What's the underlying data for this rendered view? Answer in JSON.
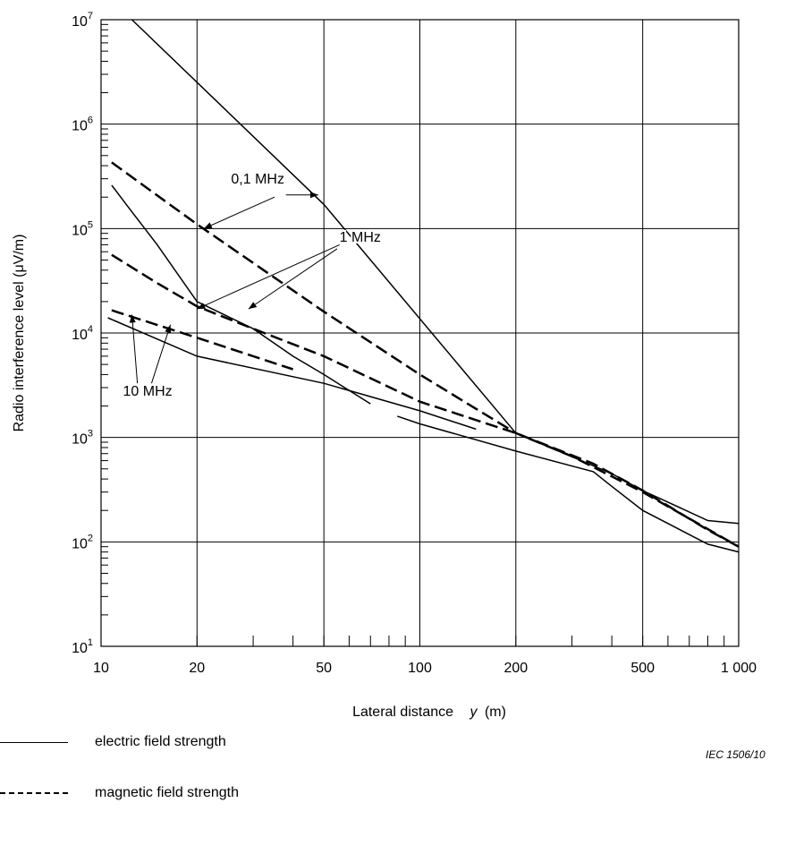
{
  "chart_data": {
    "type": "line",
    "xscale": "log",
    "yscale": "log",
    "xlabel": "Lateral distance",
    "xlabel_var": "y",
    "xlabel_unit": "(m)",
    "ylabel": "Radio interference level   (μV/m)",
    "xlim": [
      10,
      1000
    ],
    "ylim": [
      10,
      10000000
    ],
    "grid": true,
    "x_ticks": [
      {
        "value": 10,
        "label": "10"
      },
      {
        "value": 20,
        "label": "20"
      },
      {
        "value": 50,
        "label": "50"
      },
      {
        "value": 100,
        "label": "100"
      },
      {
        "value": 200,
        "label": "200"
      },
      {
        "value": 500,
        "label": "500"
      },
      {
        "value": 1000,
        "label": "1 000"
      }
    ],
    "y_ticks": [
      {
        "value": 10,
        "base": "10",
        "exp": "1"
      },
      {
        "value": 100,
        "base": "10",
        "exp": "2"
      },
      {
        "value": 1000,
        "base": "10",
        "exp": "3"
      },
      {
        "value": 10000,
        "base": "10",
        "exp": "4"
      },
      {
        "value": 100000,
        "base": "10",
        "exp": "5"
      },
      {
        "value": 1000000,
        "base": "10",
        "exp": "6"
      },
      {
        "value": 10000000,
        "base": "10",
        "exp": "7"
      }
    ],
    "series": [
      {
        "style": "solid",
        "x": [
          12.5,
          50,
          200,
          400,
          500,
          800,
          1000
        ],
        "y": [
          10000000,
          170000,
          1100,
          450,
          310,
          160,
          150
        ]
      },
      {
        "style": "solid",
        "x": [
          10.8,
          12,
          15,
          20,
          30,
          40,
          50,
          70
        ],
        "y": [
          260000,
          170000,
          70000,
          20000,
          11000,
          6000,
          4000,
          2100
        ]
      },
      {
        "style": "solid",
        "x": [
          85,
          100,
          200,
          350,
          400,
          500,
          800,
          1000
        ],
        "y": [
          1600,
          1350,
          740,
          470,
          340,
          200,
          95,
          80
        ]
      },
      {
        "style": "solid",
        "x": [
          10.5,
          20,
          50,
          100,
          150
        ],
        "y": [
          14000,
          6000,
          3300,
          1800,
          1200
        ]
      },
      {
        "style": "dashed",
        "x": [
          10.8,
          20,
          50,
          100,
          200,
          300,
          500,
          1000
        ],
        "y": [
          430000,
          110000,
          16000,
          4000,
          1100,
          660,
          300,
          90
        ]
      },
      {
        "style": "dashed",
        "x": [
          10.8,
          15,
          20,
          30,
          50,
          100,
          200,
          350,
          500,
          800,
          1000
        ],
        "y": [
          56000,
          30000,
          18000,
          11000,
          6000,
          2200,
          1100,
          560,
          310,
          130,
          90
        ]
      },
      {
        "style": "dashed",
        "x": [
          10.8,
          20,
          30,
          40
        ],
        "y": [
          16500,
          9000,
          6000,
          4500
        ]
      }
    ],
    "annotations": [
      {
        "text": "0,1 MHz",
        "x": 31,
        "y": 270000,
        "arrows": [
          {
            "from": [
              35,
              200000
            ],
            "to": [
              21,
              100000
            ]
          },
          {
            "from": [
              38,
              210000
            ],
            "to": [
              48,
              210000
            ]
          }
        ]
      },
      {
        "text": "1 MHz",
        "x": 65,
        "y": 75000,
        "arrows": [
          {
            "from": [
              56,
              70000
            ],
            "to": [
              20,
              17000
            ]
          },
          {
            "from": [
              55,
              64000
            ],
            "to": [
              29,
              17000
            ]
          }
        ]
      },
      {
        "text": "10 MHz",
        "x": 14,
        "y": 2500,
        "arrows": [
          {
            "from": [
              13,
              3300
            ],
            "to": [
              12.5,
              15000
            ]
          },
          {
            "from": [
              14.4,
              3300
            ],
            "to": [
              16.5,
              12000
            ]
          }
        ]
      }
    ],
    "credit": "IEC  1506/10",
    "legend": [
      {
        "style": "solid",
        "label": "electric field strength"
      },
      {
        "style": "dashed",
        "label": "magnetic field strength"
      }
    ]
  }
}
